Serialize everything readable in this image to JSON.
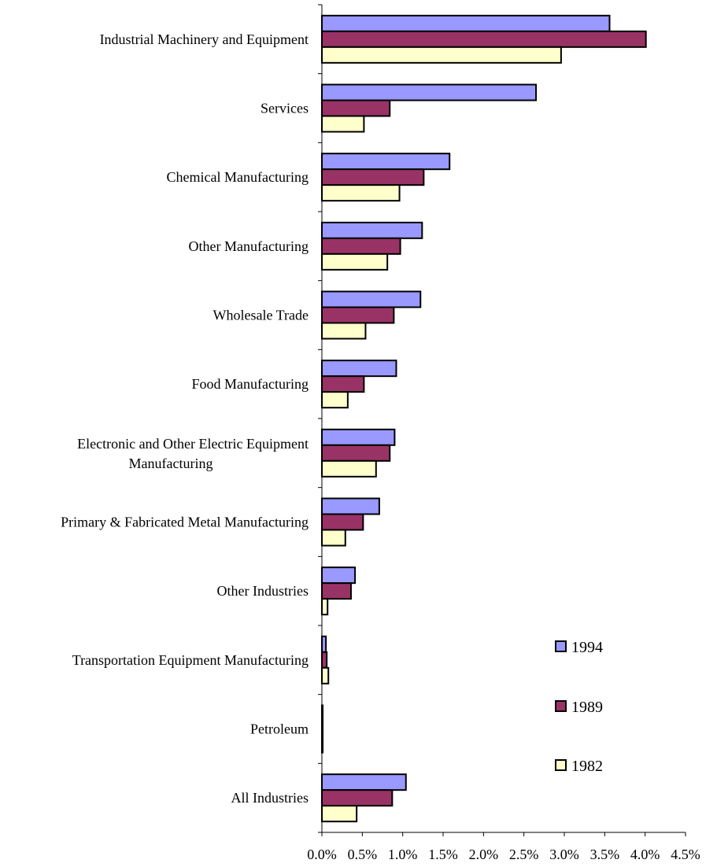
{
  "chart_data": {
    "type": "bar",
    "orientation": "horizontal",
    "title": "",
    "xlabel": "",
    "ylabel": "",
    "categories": [
      [
        "Industrial Machinery and Equipment"
      ],
      [
        "Services"
      ],
      [
        "Chemical Manufacturing"
      ],
      [
        "Other Manufacturing"
      ],
      [
        "Wholesale Trade"
      ],
      [
        "Food Manufacturing"
      ],
      [
        "Electronic and Other Electric Equipment",
        "Manufacturing"
      ],
      [
        "Primary & Fabricated Metal Manufacturing"
      ],
      [
        "Other Industries"
      ],
      [
        "Transportation Equipment Manufacturing"
      ],
      [
        "Petroleum"
      ],
      [
        "All Industries"
      ]
    ],
    "series": [
      {
        "name": "1994",
        "color": "#9999ff",
        "values": [
          3.56,
          2.65,
          1.58,
          1.24,
          1.22,
          0.92,
          0.9,
          0.71,
          0.41,
          0.05,
          0.01,
          1.04
        ]
      },
      {
        "name": "1989",
        "color": "#993366",
        "values": [
          4.01,
          0.84,
          1.26,
          0.97,
          0.89,
          0.52,
          0.84,
          0.51,
          0.36,
          0.06,
          0.01,
          0.87
        ]
      },
      {
        "name": "1982",
        "color": "#ffffcc",
        "values": [
          2.96,
          0.52,
          0.96,
          0.81,
          0.54,
          0.32,
          0.67,
          0.29,
          0.07,
          0.08,
          0.01,
          0.43
        ]
      }
    ],
    "xlim": [
      0,
      4.5
    ],
    "xticks": [
      0,
      0.5,
      1.0,
      1.5,
      2.0,
      2.5,
      3.0,
      3.5,
      4.0,
      4.5
    ],
    "xtick_labels": [
      "0.0%",
      "0.5%",
      "1.0%",
      "1.5%",
      "2.0%",
      "2.5%",
      "3.0%",
      "3.5%",
      "4.0%",
      "4.5%"
    ],
    "legend_position": "right",
    "grid": false
  }
}
